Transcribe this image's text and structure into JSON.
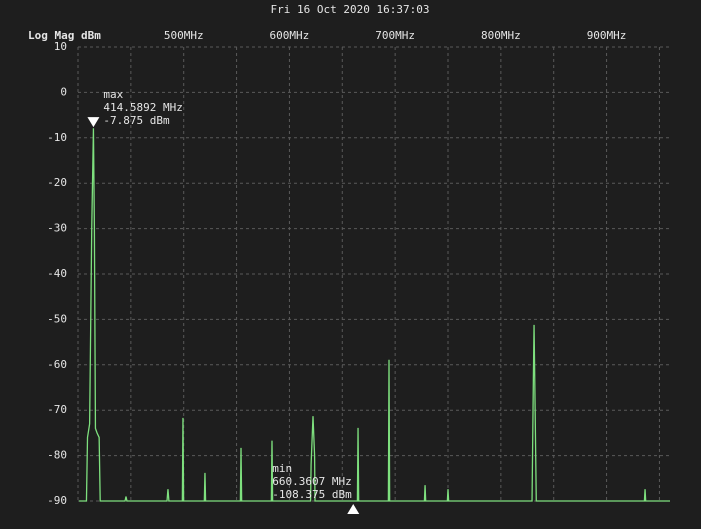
{
  "chart_data": {
    "type": "line",
    "title": "Fri 16 Oct 2020 16:37:03",
    "y_label": "Log Mag dBm",
    "xlim": [
      400,
      960
    ],
    "ylim": [
      -90,
      10
    ],
    "xticks": [
      {
        "value": 500,
        "label": "500MHz"
      },
      {
        "value": 600,
        "label": "600MHz"
      },
      {
        "value": 700,
        "label": "700MHz"
      },
      {
        "value": 800,
        "label": "800MHz"
      },
      {
        "value": 900,
        "label": "900MHz"
      }
    ],
    "x_minor_grid": [
      450,
      550,
      650,
      750,
      850,
      950
    ],
    "yticks": [
      10,
      0,
      -10,
      -20,
      -30,
      -40,
      -50,
      -60,
      -70,
      -80,
      -90
    ],
    "grid": true,
    "series": [
      {
        "color": "#7ee07e",
        "x": [
          401,
          408,
          409,
          411,
          413,
          414.6,
          415.5,
          416.5,
          418,
          420,
          421,
          444.5,
          445.4,
          446.3,
          484.2,
          485.1,
          486,
          498.7,
          499.3,
          499.9,
          519.5,
          520.1,
          520.7,
          553.6,
          554.2,
          554.8,
          582.9,
          583.5,
          584.1,
          620,
          620.5,
          622.3,
          623.8,
          624.2,
          664.3,
          664.9,
          665.5,
          693.6,
          694.2,
          694.8,
          727.7,
          728.3,
          728.9,
          749.4,
          750,
          750.6,
          829.5,
          830.8,
          831.4,
          832,
          833.5,
          935.8,
          936.4,
          937,
          960
        ],
        "values": [
          -90,
          -90,
          -76,
          -73,
          -30,
          -7.9,
          -30,
          -74,
          -75,
          -76,
          -90,
          -90,
          -89,
          -90,
          -90,
          -87.4,
          -90,
          -90,
          -71.7,
          -90,
          -90,
          -83.8,
          -90,
          -90,
          -78.3,
          -90,
          -90,
          -76.7,
          -90,
          -90,
          -82,
          -71.3,
          -80,
          -90,
          -90,
          -73.9,
          -90,
          -90,
          -58.9,
          -90,
          -90,
          -86.5,
          -90,
          -90,
          -87.4,
          -90,
          -90,
          -62,
          -51.2,
          -62,
          -90,
          -90,
          -87.4,
          -90,
          -90
        ]
      }
    ],
    "markers": [
      {
        "label": "max",
        "freq": 414.5892,
        "freq_label": "414.5892 MHz",
        "level": -7.875,
        "level_label": "-7.875 dBm",
        "side": "above"
      },
      {
        "label": "min",
        "freq": 660.3607,
        "freq_label": "660.3607 MHz",
        "level": -108.375,
        "level_label": "-108.375 dBm",
        "side": "below"
      }
    ]
  }
}
